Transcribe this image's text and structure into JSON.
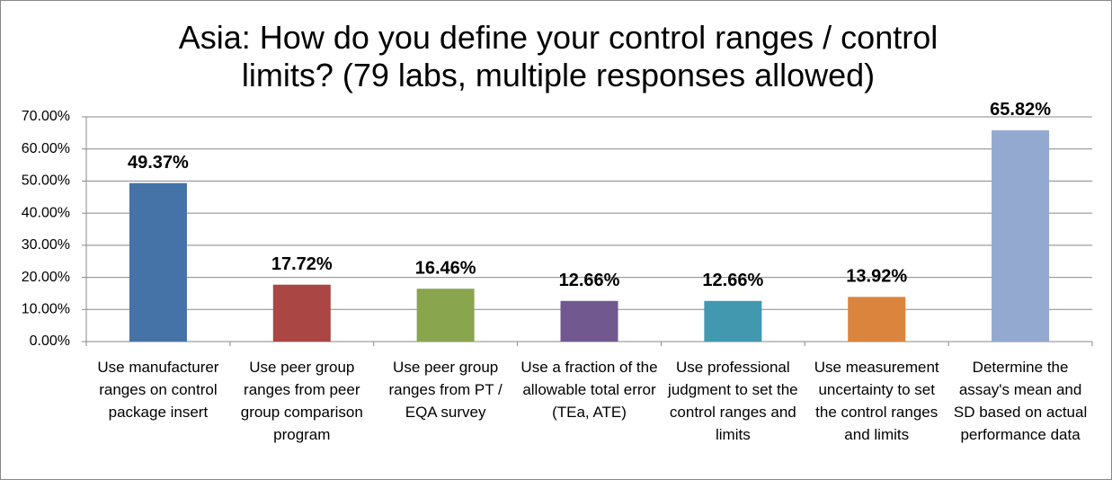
{
  "chart_data": {
    "type": "bar",
    "title": "Asia: How do you define your control ranges / control limits? (79 labs, multiple responses allowed)",
    "categories": [
      "Use manufacturer ranges on control package insert",
      "Use peer group ranges from peer group comparison program",
      "Use peer group ranges from PT / EQA survey",
      "Use a fraction of the allowable total error (TEa, ATE)",
      "Use professional judgment to set the control ranges and limits",
      "Use measurement uncertainty to set the control ranges and limits",
      "Determine the assay's mean and SD based on actual performance data"
    ],
    "values": [
      49.37,
      17.72,
      16.46,
      12.66,
      12.66,
      13.92,
      65.82
    ],
    "value_labels": [
      "49.37%",
      "17.72%",
      "16.46%",
      "12.66%",
      "12.66%",
      "13.92%",
      "65.82%"
    ],
    "colors": [
      "#4572a7",
      "#aa4643",
      "#89a54e",
      "#71588f",
      "#4198af",
      "#db843d",
      "#93a9cf"
    ],
    "ylim": [
      0,
      70
    ],
    "yticks": [
      {
        "value": 0,
        "label": "0.00%"
      },
      {
        "value": 10,
        "label": "10.00%"
      },
      {
        "value": 20,
        "label": "20.00%"
      },
      {
        "value": 30,
        "label": "30.00%"
      },
      {
        "value": 40,
        "label": "40.00%"
      },
      {
        "value": 50,
        "label": "50.00%"
      },
      {
        "value": 60,
        "label": "60.00%"
      },
      {
        "value": 70,
        "label": "70.00%"
      }
    ],
    "grid": true
  }
}
